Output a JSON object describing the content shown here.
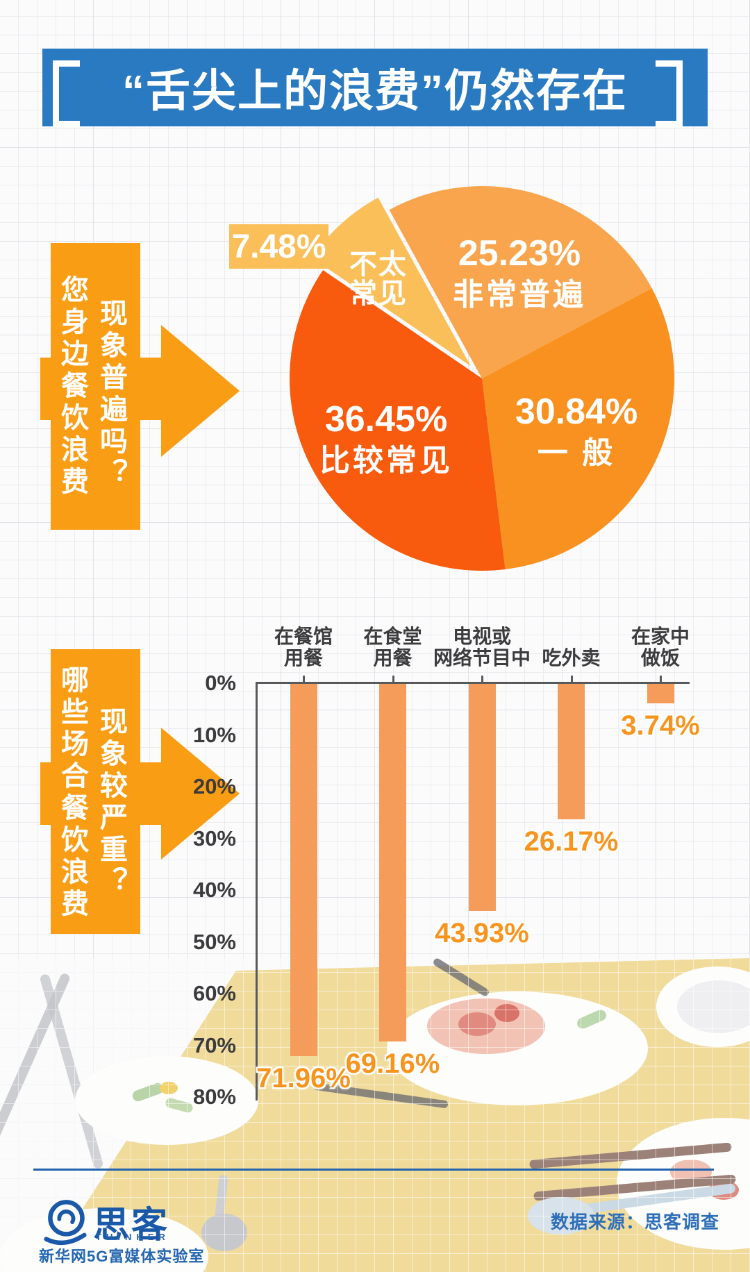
{
  "header": {
    "title": "“舌尖上的浪费”仍然存在"
  },
  "pie_section": {
    "question_col1": "您身边餐饮浪费",
    "question_col2": "现象普遍吗？",
    "question_full": "您身边餐饮浪费现象普遍吗？"
  },
  "bar_section": {
    "question_col1": "哪些场合餐饮浪费",
    "question_col2": "现象较严重？",
    "question_full": "哪些场合餐饮浪费现象较严重？"
  },
  "footer": {
    "logo_cn": "思客",
    "logo_en": "THINKER",
    "logo_sub": "新华网5G富媒体实验室",
    "source": "数据来源：思客调查"
  },
  "colors": {
    "banner_blue": "#2a7ac2",
    "question_orange": "#f99d15",
    "bar_fill": "#f59c5b",
    "bar_value_label": "#f7941d",
    "footer_blue": "#2e6fb7",
    "slice_very_common": "#f9a54e",
    "slice_average": "#f8911f",
    "slice_fairly_common": "#f85a0e",
    "slice_rare": "#fbbf5a"
  },
  "chart_data": [
    {
      "type": "pie",
      "title": "您身边餐饮浪费现象普遍吗？",
      "legend_position": "on-slice",
      "slices": [
        {
          "key": "very-common",
          "name": "非常普遍",
          "value": 25.23,
          "value_label": "25.23%",
          "color": "#f9a54e"
        },
        {
          "key": "average",
          "name": "一般",
          "name_display": "一 般",
          "value": 30.84,
          "value_label": "30.84%",
          "color": "#f8911f"
        },
        {
          "key": "fairly-common",
          "name": "比较常见",
          "value": 36.45,
          "value_label": "36.45%",
          "color": "#f85a0e"
        },
        {
          "key": "rare",
          "name": "不太常见",
          "name_lines": [
            "不太",
            "常见"
          ],
          "value": 7.48,
          "value_label": "7.48%",
          "color": "#fbbf5a",
          "exploded": true
        }
      ]
    },
    {
      "type": "bar",
      "title": "哪些场合餐饮浪费现象较严重？",
      "orientation": "hanging-down-from-zero",
      "categories": [
        {
          "key": "restaurant",
          "lines": [
            "在餐馆",
            "用餐"
          ]
        },
        {
          "key": "canteen",
          "lines": [
            "在食堂",
            "用餐"
          ]
        },
        {
          "key": "tv-online",
          "lines": [
            "电视或",
            "网络节目中"
          ]
        },
        {
          "key": "takeout",
          "lines": [
            "吃外卖"
          ]
        },
        {
          "key": "home",
          "lines": [
            "在家中",
            "做饭"
          ]
        }
      ],
      "values": [
        71.96,
        69.16,
        43.93,
        26.17,
        3.74
      ],
      "value_labels": [
        "71.96%",
        "69.16%",
        "43.93%",
        "26.17%",
        "3.74%"
      ],
      "y_axis": {
        "min": 0,
        "max": 80,
        "step": 10,
        "direction": "down",
        "tick_labels": [
          "0%",
          "10%",
          "20%",
          "30%",
          "40%",
          "50%",
          "60%",
          "70%",
          "80%"
        ]
      },
      "grid": false
    }
  ]
}
